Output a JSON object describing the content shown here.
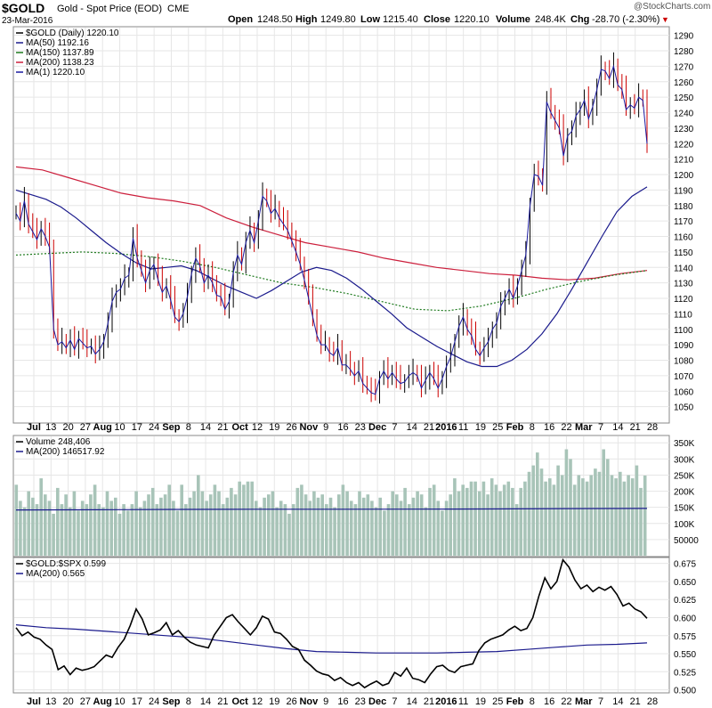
{
  "header": {
    "symbol": "$GOLD",
    "name": "Gold - Spot Price (EOD)",
    "exchange": "CME",
    "date": "23-Mar-2016",
    "open_label": "Open",
    "open": "1248.50",
    "high_label": "High",
    "high": "1249.80",
    "low_label": "Low",
    "low": "1215.40",
    "close_label": "Close",
    "close": "1220.10",
    "volume_label": "Volume",
    "volume": "248.4K",
    "chg_label": "Chg",
    "chg": "-28.70 (-2.30%)",
    "watermark": "@StockCharts.com"
  },
  "colors": {
    "up": "#000000",
    "down": "#cc0000",
    "ma50": "#1a1a8c",
    "ma150": "#1e7a1e",
    "ma200": "#cc1f3c",
    "ma1": "#1a1aa0",
    "volume_bar": "#a8c4b8",
    "grid": "#e6e6e6",
    "line": "#000000"
  },
  "legend_price": [
    {
      "text": "$GOLD (Daily) 1220.10",
      "color": "#000000"
    },
    {
      "text": "MA(50) 1192.16",
      "color": "#1a1a8c"
    },
    {
      "text": "MA(150) 1137.89",
      "color": "#1e7a1e"
    },
    {
      "text": "MA(200) 1138.23",
      "color": "#cc1f3c"
    },
    {
      "text": "MA(1) 1220.10",
      "color": "#1a1aa0"
    }
  ],
  "legend_volume": [
    {
      "text": "Volume 248,406",
      "color": "#000000"
    },
    {
      "text": "MA(200) 146517.92",
      "color": "#1a1a8c"
    }
  ],
  "legend_ratio": [
    {
      "text": "$GOLD:$SPX 0.599",
      "color": "#000000"
    },
    {
      "text": "MA(200) 0.565",
      "color": "#1a1a8c"
    }
  ],
  "chart_data": [
    {
      "type": "line",
      "title": "$GOLD (Daily)",
      "ylim": [
        1040,
        1295
      ],
      "yticks": [
        1050,
        1060,
        1070,
        1080,
        1090,
        1100,
        1110,
        1120,
        1130,
        1140,
        1150,
        1160,
        1170,
        1180,
        1190,
        1200,
        1210,
        1220,
        1230,
        1240,
        1250,
        1260,
        1270,
        1280,
        1290
      ],
      "series": [
        {
          "name": "$GOLD",
          "values": [
            1175,
            1170,
            1183,
            1168,
            1163,
            1158,
            1165,
            1160,
            1153,
            1100,
            1090,
            1092,
            1088,
            1093,
            1087,
            1094,
            1091,
            1088,
            1089,
            1084,
            1087,
            1092,
            1104,
            1118,
            1124,
            1126,
            1133,
            1135,
            1159,
            1146,
            1138,
            1130,
            1138,
            1142,
            1132,
            1124,
            1128,
            1119,
            1108,
            1105,
            1110,
            1121,
            1136,
            1146,
            1141,
            1130,
            1135,
            1130,
            1122,
            1121,
            1113,
            1118,
            1137,
            1148,
            1142,
            1156,
            1164,
            1156,
            1170,
            1186,
            1183,
            1175,
            1178,
            1172,
            1168,
            1164,
            1157,
            1150,
            1142,
            1132,
            1120,
            1108,
            1096,
            1090,
            1090,
            1085,
            1083,
            1088,
            1077,
            1077,
            1074,
            1070,
            1073,
            1065,
            1062,
            1059,
            1058,
            1068,
            1073,
            1068,
            1072,
            1068,
            1065,
            1066,
            1070,
            1072,
            1070,
            1062,
            1067,
            1072,
            1068,
            1062,
            1068,
            1076,
            1082,
            1092,
            1102,
            1108,
            1100,
            1096,
            1087,
            1083,
            1088,
            1092,
            1100,
            1104,
            1115,
            1120,
            1126,
            1120,
            1128,
            1138,
            1148,
            1180,
            1200,
            1199,
            1193,
            1247,
            1240,
            1235,
            1230,
            1212,
            1225,
            1228,
            1238,
            1242,
            1248,
            1236,
            1244,
            1255,
            1268,
            1267,
            1262,
            1270,
            1258,
            1255,
            1242,
            1245,
            1243,
            1250,
            1248,
            1220
          ]
        },
        {
          "name": "MA(50)",
          "values": [
            1190,
            1187,
            1184,
            1179,
            1172,
            1164,
            1156,
            1149,
            1143,
            1139,
            1140,
            1141,
            1138,
            1133,
            1128,
            1124,
            1120,
            1125,
            1131,
            1137,
            1140,
            1138,
            1133,
            1126,
            1118,
            1110,
            1101,
            1095,
            1089,
            1084,
            1079,
            1076,
            1076,
            1080,
            1087,
            1097,
            1110,
            1126,
            1143,
            1160,
            1176,
            1186,
            1192
          ]
        },
        {
          "name": "MA(150)",
          "values": [
            1148,
            1149,
            1150,
            1149,
            1147,
            1144,
            1140,
            1135,
            1130,
            1127,
            1123,
            1118,
            1113,
            1112,
            1115,
            1120,
            1126,
            1131,
            1135,
            1138
          ]
        },
        {
          "name": "MA(200)",
          "values": [
            1205,
            1203,
            1198,
            1193,
            1188,
            1185,
            1183,
            1180,
            1172,
            1166,
            1161,
            1156,
            1153,
            1150,
            1146,
            1143,
            1140,
            1138,
            1136,
            1135,
            1133,
            1132,
            1133,
            1136,
            1138
          ]
        }
      ]
    },
    {
      "type": "bar",
      "title": "Volume",
      "ylim": [
        0,
        370000
      ],
      "yticks": [
        50000,
        100000,
        150000,
        200000,
        250000,
        300000,
        350000
      ],
      "ytick_labels": [
        "50000",
        "100K",
        "150K",
        "200K",
        "250K",
        "300K",
        "350K"
      ],
      "series": [
        {
          "name": "Volume",
          "values": [
            220000,
            170000,
            150000,
            200000,
            180000,
            160000,
            240000,
            190000,
            170000,
            130000,
            210000,
            160000,
            190000,
            150000,
            200000,
            140000,
            170000,
            160000,
            190000,
            220000,
            160000,
            150000,
            200000,
            170000,
            180000,
            130000,
            160000,
            140000,
            160000,
            200000,
            150000,
            170000,
            190000,
            210000,
            160000,
            180000,
            190000,
            220000,
            170000,
            140000,
            220000,
            160000,
            180000,
            200000,
            250000,
            200000,
            170000,
            190000,
            220000,
            200000,
            160000,
            180000,
            210000,
            190000,
            230000,
            220000,
            230000,
            230000,
            170000,
            150000,
            180000,
            190000,
            200000,
            150000,
            170000,
            160000,
            130000,
            160000,
            210000,
            220000,
            190000,
            170000,
            200000,
            180000,
            190000,
            160000,
            180000,
            150000,
            190000,
            220000,
            200000,
            170000,
            160000,
            200000,
            180000,
            190000,
            170000,
            150000,
            180000,
            140000,
            160000,
            200000,
            190000,
            170000,
            210000,
            160000,
            180000,
            200000,
            190000,
            150000,
            210000,
            220000,
            170000,
            140000,
            170000,
            190000,
            240000,
            200000,
            220000,
            210000,
            230000,
            230000,
            200000,
            230000,
            190000,
            240000,
            220000,
            200000,
            220000,
            230000,
            210000,
            160000,
            210000,
            230000,
            260000,
            280000,
            320000,
            270000,
            230000,
            240000,
            220000,
            280000,
            250000,
            330000,
            300000,
            220000,
            250000,
            240000,
            230000,
            250000,
            270000,
            260000,
            330000,
            300000,
            250000,
            240000,
            260000,
            230000,
            250000,
            240000,
            280000,
            210000,
            248406
          ]
        },
        {
          "name": "MA(200)",
          "values": [
            142000,
            142500,
            143500,
            144000,
            144000,
            144500,
            145000,
            146000,
            146517
          ]
        }
      ]
    },
    {
      "type": "line",
      "title": "$GOLD:$SPX",
      "ylim": [
        0.497,
        0.682
      ],
      "yticks": [
        0.5,
        0.525,
        0.55,
        0.575,
        0.6,
        0.625,
        0.65,
        0.675
      ],
      "ytick_labels": [
        "0.500",
        "0.525",
        "0.550",
        "0.575",
        "0.600",
        "0.625",
        "0.650",
        "0.675"
      ],
      "series": [
        {
          "name": "$GOLD:$SPX",
          "values": [
            0.586,
            0.575,
            0.58,
            0.573,
            0.57,
            0.562,
            0.556,
            0.528,
            0.533,
            0.521,
            0.53,
            0.527,
            0.529,
            0.532,
            0.54,
            0.548,
            0.545,
            0.559,
            0.57,
            0.589,
            0.612,
            0.598,
            0.576,
            0.579,
            0.583,
            0.593,
            0.576,
            0.582,
            0.573,
            0.566,
            0.562,
            0.56,
            0.558,
            0.576,
            0.588,
            0.6,
            0.604,
            0.594,
            0.585,
            0.576,
            0.586,
            0.602,
            0.598,
            0.58,
            0.578,
            0.57,
            0.56,
            0.556,
            0.541,
            0.534,
            0.526,
            0.522,
            0.52,
            0.513,
            0.517,
            0.51,
            0.506,
            0.51,
            0.503,
            0.508,
            0.512,
            0.506,
            0.509,
            0.524,
            0.519,
            0.53,
            0.516,
            0.514,
            0.51,
            0.522,
            0.532,
            0.534,
            0.527,
            0.524,
            0.532,
            0.534,
            0.536,
            0.554,
            0.565,
            0.57,
            0.573,
            0.576,
            0.583,
            0.588,
            0.582,
            0.585,
            0.6,
            0.63,
            0.655,
            0.64,
            0.65,
            0.68,
            0.67,
            0.652,
            0.64,
            0.645,
            0.636,
            0.642,
            0.638,
            0.643,
            0.632,
            0.616,
            0.62,
            0.612,
            0.608,
            0.599
          ]
        },
        {
          "name": "MA(200)",
          "values": [
            0.59,
            0.586,
            0.584,
            0.581,
            0.578,
            0.575,
            0.572,
            0.567,
            0.562,
            0.557,
            0.553,
            0.552,
            0.551,
            0.551,
            0.551,
            0.552,
            0.553,
            0.556,
            0.559,
            0.562,
            0.563,
            0.565
          ]
        }
      ]
    }
  ],
  "x_axis_labels": [
    "Jul",
    "13",
    "20",
    "27",
    "Aug",
    "10",
    "17",
    "24",
    "Sep",
    "8",
    "14",
    "21",
    "Oct",
    "12",
    "19",
    "26",
    "Nov",
    "9",
    "16",
    "23",
    "Dec",
    "7",
    "14",
    "21",
    "2016",
    "11",
    "19",
    "25",
    "Feb",
    "8",
    "16",
    "22",
    "Mar",
    "7",
    "14",
    "21",
    "28"
  ]
}
